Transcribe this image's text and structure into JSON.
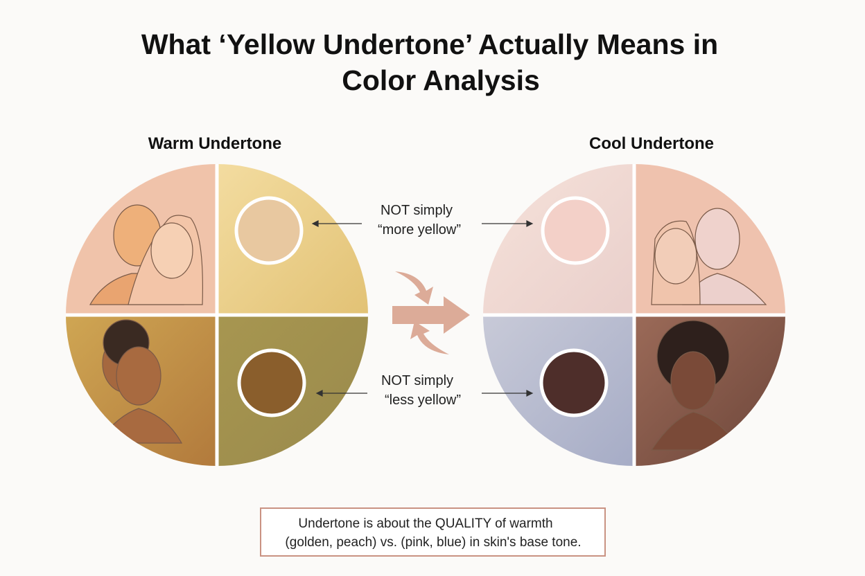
{
  "header": {
    "title_lines": [
      "What ‘Yellow Undertone’ Actually Means in",
      "Color Analysis"
    ]
  },
  "panels": {
    "warm": {
      "label": "Warm Undertone"
    },
    "cool": {
      "label": "Cool Undertone"
    }
  },
  "annotations": {
    "top": [
      "NOT simply",
      "“more yellow”"
    ],
    "bottom": [
      "NOT simply",
      "“less yellow”"
    ]
  },
  "note": {
    "lines": [
      "Undertone is about the QUALITY of warmth",
      "(golden, peach) vs. (pink, blue) in skin's base tone."
    ]
  }
}
